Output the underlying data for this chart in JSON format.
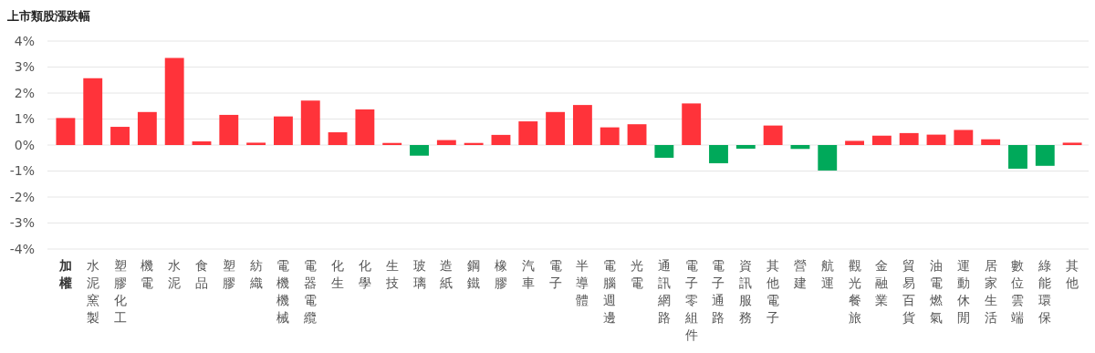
{
  "chart_data": {
    "type": "bar",
    "title": "上市類股漲跌幅",
    "categories": [
      "加權",
      "水泥窯製",
      "塑膠化工",
      "機電",
      "水泥",
      "食品",
      "塑膠",
      "紡織",
      "電機機械",
      "電器電纜",
      "化生",
      "化學",
      "生技",
      "玻璃",
      "造紙",
      "鋼鐵",
      "橡膠",
      "汽車",
      "電子",
      "半導體",
      "電腦週邊",
      "光電",
      "通訊網路",
      "電子零組件",
      "電子通路",
      "資訊服務",
      "其他電子",
      "營建",
      "航運",
      "觀光餐旅",
      "金融業",
      "貿易百貨",
      "油電燃氣",
      "運動休閒",
      "居家生活",
      "數位雲端",
      "綠能環保",
      "其他"
    ],
    "values": [
      1.04,
      2.57,
      0.7,
      1.27,
      3.35,
      0.14,
      1.16,
      0.09,
      1.1,
      1.71,
      0.49,
      1.37,
      0.08,
      -0.41,
      0.19,
      0.08,
      0.39,
      0.91,
      1.27,
      1.54,
      0.68,
      0.8,
      -0.49,
      1.6,
      -0.7,
      -0.14,
      0.75,
      -0.15,
      -0.98,
      0.16,
      0.36,
      0.46,
      0.4,
      0.58,
      0.22,
      -0.91,
      -0.8,
      0.09
    ],
    "colors": [
      "#ff333a",
      "#ff333a",
      "#ff333a",
      "#ff333a",
      "#ff333a",
      "#ff333a",
      "#ff333a",
      "#ff333a",
      "#ff333a",
      "#ff333a",
      "#ff333a",
      "#ff333a",
      "#ff333a",
      "#00a95a",
      "#ff333a",
      "#ff333a",
      "#ff333a",
      "#ff333a",
      "#ff333a",
      "#ff333a",
      "#ff333a",
      "#ff333a",
      "#00a95a",
      "#ff333a",
      "#00a95a",
      "#00a95a",
      "#ff333a",
      "#00a95a",
      "#00a95a",
      "#ff333a",
      "#ff333a",
      "#ff333a",
      "#ff333a",
      "#ff333a",
      "#ff333a",
      "#00a95a",
      "#00a95a",
      "#ff333a"
    ],
    "ylim": [
      -4,
      4
    ],
    "yticks": [
      {
        "value": -4,
        "label": "-4%"
      },
      {
        "value": -3,
        "label": "-3%"
      },
      {
        "value": -2,
        "label": "-2%"
      },
      {
        "value": -1,
        "label": "-1%"
      },
      {
        "value": 0,
        "label": "0%"
      },
      {
        "value": 1,
        "label": "1%"
      },
      {
        "value": 2,
        "label": "2%"
      },
      {
        "value": 3,
        "label": "3%"
      },
      {
        "value": 4,
        "label": "4%"
      }
    ],
    "grid": "y"
  }
}
